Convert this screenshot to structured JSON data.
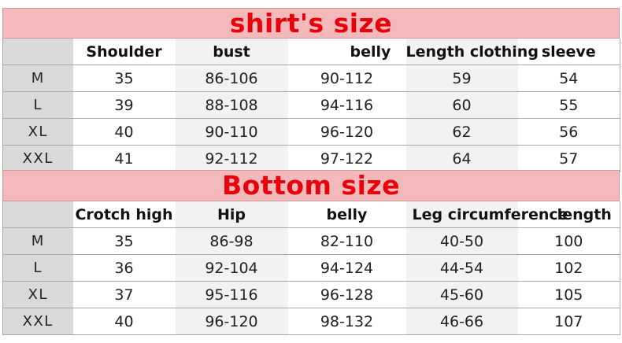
{
  "colors": {
    "title_band": "#f4b9ba",
    "title_text": "#e8000b",
    "size_column": "#d9d9d9",
    "stripe": "#f2f2f2"
  },
  "shirt": {
    "title": "shirt's size",
    "headers": [
      "",
      "Shoulder",
      "bust",
      "belly",
      "Length clothing",
      "sleeve"
    ],
    "rows": [
      [
        "M",
        "35",
        "86-106",
        "90-112",
        "59",
        "54"
      ],
      [
        "L",
        "39",
        "88-108",
        "94-116",
        "60",
        "55"
      ],
      [
        "XL",
        "40",
        "90-110",
        "96-120",
        "62",
        "56"
      ],
      [
        "XXL",
        "41",
        "92-112",
        "97-122",
        "64",
        "57"
      ]
    ]
  },
  "bottom": {
    "title": "Bottom size",
    "headers": [
      "",
      "Crotch high",
      "Hip",
      "belly",
      "Leg circumference",
      "length"
    ],
    "rows": [
      [
        "M",
        "35",
        "86-98",
        "82-110",
        "40-50",
        "100"
      ],
      [
        "L",
        "36",
        "92-104",
        "94-124",
        "44-54",
        "102"
      ],
      [
        "XL",
        "37",
        "95-116",
        "96-128",
        "45-60",
        "105"
      ],
      [
        "XXL",
        "40",
        "96-120",
        "98-132",
        "46-66",
        "107"
      ]
    ]
  }
}
